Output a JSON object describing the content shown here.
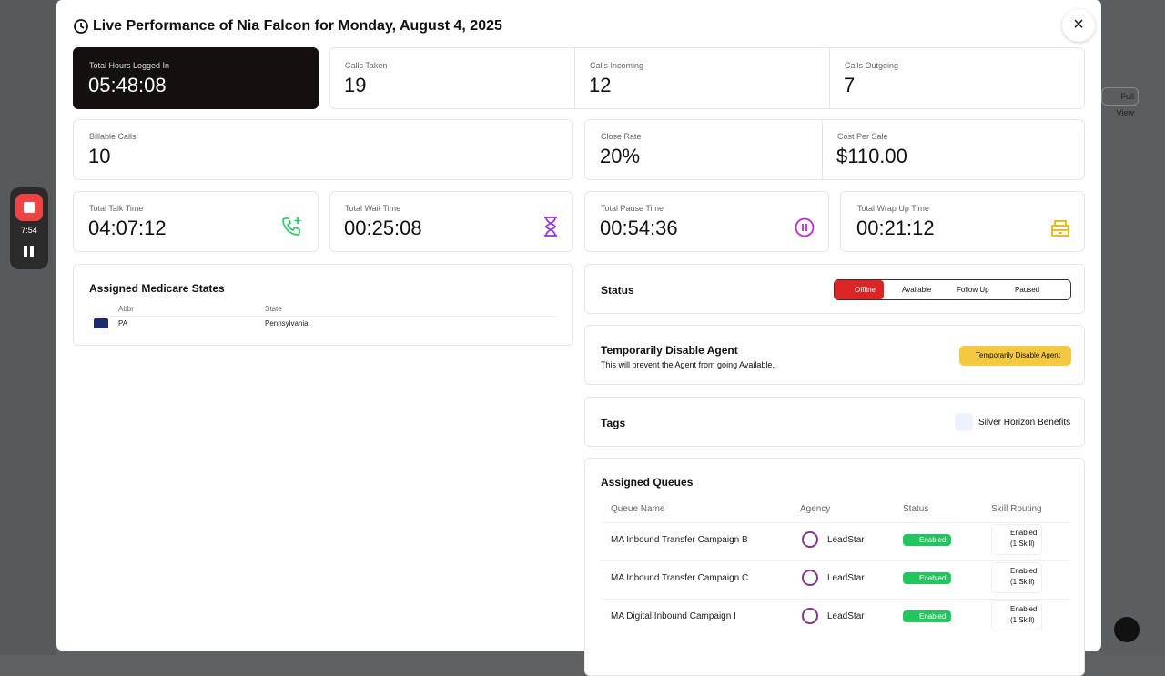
{
  "background": {
    "timer": "7:54",
    "full_view": "Full View"
  },
  "modal": {
    "title": "Live Performance of Nia Falcon for Monday, August 4, 2025",
    "stats": [
      {
        "label": "Total Hours Logged In",
        "value": "05:48:08"
      },
      {
        "label": "Calls Taken",
        "value": 19
      },
      {
        "label": "Calls Incoming",
        "value": 12
      },
      {
        "label": "Calls Outgoing",
        "value": 7
      },
      {
        "label": "Billable Calls",
        "value": 10
      },
      {
        "label": "Close Rate",
        "value": "20%"
      },
      {
        "label": "Cost Per Sale",
        "value": "$110.00"
      },
      {
        "label": "Total Talk Time",
        "value": "04:07:12"
      },
      {
        "label": "Total Wait Time",
        "value": "00:25:08"
      },
      {
        "label": "Total Pause Time",
        "value": "00:54:36"
      },
      {
        "label": "Total Wrap Up Time",
        "value": "00:21:12"
      }
    ],
    "medicare": {
      "title": "Assigned Medicare States",
      "columns": [
        "Abbr",
        "State"
      ],
      "rows": [
        [
          "PA",
          "Pennsylvania"
        ]
      ]
    },
    "status": {
      "title": "Status",
      "options": [
        "Offline",
        "Available",
        "Follow Up",
        "Paused"
      ]
    },
    "disable": {
      "title": "Temporarily Disable Agent",
      "description": "This will prevent the Agent from going Available.",
      "button": "Temporarily Disable Agent"
    },
    "tags": {
      "title": "Tags",
      "items": [
        "Silver Horizon Benefits"
      ]
    },
    "queues": {
      "title": "Assigned Queues",
      "columns": [
        "Queue Name",
        "Agency",
        "Status",
        "Skill Routing"
      ],
      "rows": [
        {
          "name": "MA Inbound Transfer Campaign B",
          "agency": "LeadStar",
          "status": "Enabled",
          "routing": [
            "Enabled",
            "(1 Skill)"
          ]
        },
        {
          "name": "MA Inbound Transfer Campaign C",
          "agency": "LeadStar",
          "status": "Enabled",
          "routing": [
            "Enabled",
            "(1 Skill)"
          ]
        },
        {
          "name": "MA Digital Inbound Campaign I",
          "agency": "LeadStar",
          "status": "Enabled",
          "routing": [
            "Enabled",
            "(1 Skill)"
          ]
        }
      ]
    }
  }
}
